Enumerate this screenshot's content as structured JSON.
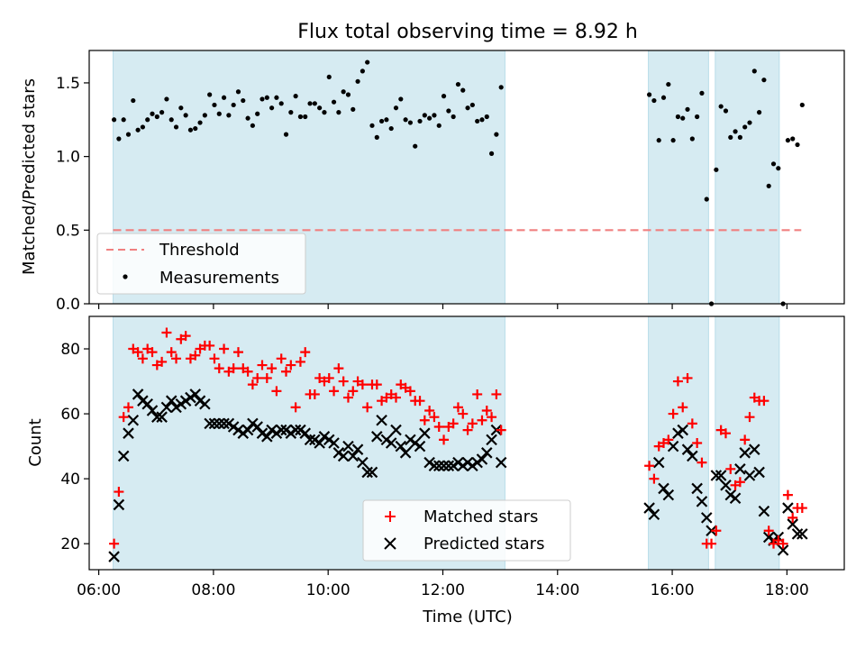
{
  "chart_data": [
    {
      "type": "scatter",
      "title": "Flux total observing time = 8.92 h",
      "ylabel": "Matched/Predicted stars",
      "xlim": [
        "05:50",
        "19:00"
      ],
      "ylim": [
        0,
        1.72
      ],
      "yticks": [
        "0.0",
        "0.5",
        "1.0",
        "1.5"
      ],
      "threshold": 0.5,
      "shaded_intervals": [
        [
          "06:15",
          "13:05"
        ],
        [
          "15:35",
          "16:38"
        ],
        [
          "16:45",
          "17:52"
        ]
      ],
      "legend": {
        "position": "lower-left",
        "entries": [
          "Threshold",
          "Measurements"
        ]
      },
      "series": [
        {
          "name": "Threshold",
          "kind": "dashed-line",
          "color": "#f08080",
          "x": [
            "06:15",
            "18:15"
          ],
          "y": [
            0.5,
            0.5
          ]
        },
        {
          "name": "Measurements",
          "kind": "points",
          "color": "#000000",
          "x": [
            "06:16",
            "06:21",
            "06:26",
            "06:31",
            "06:36",
            "06:41",
            "06:46",
            "06:51",
            "06:56",
            "07:01",
            "07:06",
            "07:11",
            "07:16",
            "07:21",
            "07:26",
            "07:31",
            "07:36",
            "07:41",
            "07:46",
            "07:51",
            "07:56",
            "08:01",
            "08:06",
            "08:11",
            "08:16",
            "08:21",
            "08:26",
            "08:31",
            "08:36",
            "08:41",
            "08:46",
            "08:51",
            "08:56",
            "09:01",
            "09:06",
            "09:11",
            "09:16",
            "09:21",
            "09:26",
            "09:31",
            "09:36",
            "09:41",
            "09:46",
            "09:51",
            "09:56",
            "10:01",
            "10:06",
            "10:11",
            "10:16",
            "10:21",
            "10:26",
            "10:31",
            "10:36",
            "10:41",
            "10:46",
            "10:51",
            "10:56",
            "11:01",
            "11:06",
            "11:11",
            "11:16",
            "11:21",
            "11:26",
            "11:31",
            "11:36",
            "11:41",
            "11:46",
            "11:51",
            "11:56",
            "12:01",
            "12:06",
            "12:11",
            "12:16",
            "12:21",
            "12:26",
            "12:31",
            "12:36",
            "12:41",
            "12:46",
            "12:51",
            "12:56",
            "13:01",
            "15:36",
            "15:41",
            "15:46",
            "15:51",
            "15:56",
            "16:01",
            "16:06",
            "16:11",
            "16:16",
            "16:21",
            "16:26",
            "16:31",
            "16:36",
            "16:41",
            "16:46",
            "16:51",
            "16:56",
            "17:01",
            "17:06",
            "17:11",
            "17:16",
            "17:21",
            "17:26",
            "17:31",
            "17:36",
            "17:41",
            "17:46",
            "17:51",
            "17:56",
            "18:01",
            "18:06",
            "18:11",
            "18:16"
          ],
          "y": [
            1.25,
            1.12,
            1.25,
            1.15,
            1.38,
            1.18,
            1.2,
            1.25,
            1.29,
            1.27,
            1.3,
            1.39,
            1.25,
            1.2,
            1.33,
            1.28,
            1.18,
            1.19,
            1.23,
            1.28,
            1.42,
            1.35,
            1.29,
            1.4,
            1.28,
            1.35,
            1.44,
            1.38,
            1.26,
            1.21,
            1.29,
            1.39,
            1.4,
            1.33,
            1.4,
            1.36,
            1.15,
            1.3,
            1.41,
            1.27,
            1.27,
            1.36,
            1.36,
            1.33,
            1.3,
            1.54,
            1.37,
            1.3,
            1.44,
            1.42,
            1.32,
            1.51,
            1.58,
            1.64,
            1.21,
            1.13,
            1.24,
            1.25,
            1.19,
            1.33,
            1.39,
            1.25,
            1.23,
            1.07,
            1.24,
            1.28,
            1.26,
            1.28,
            1.21,
            1.41,
            1.31,
            1.27,
            1.49,
            1.45,
            1.33,
            1.35,
            1.24,
            1.25,
            1.27,
            1.02,
            1.15,
            1.47,
            1.42,
            1.38,
            1.11,
            1.4,
            1.49,
            1.11,
            1.27,
            1.26,
            1.32,
            1.12,
            1.27,
            1.43,
            0.71,
            0.0,
            0.91,
            1.34,
            1.31,
            1.13,
            1.17,
            1.13,
            1.2,
            1.23,
            1.58,
            1.3,
            1.52,
            0.8,
            0.95,
            0.92,
            0.0,
            1.11,
            1.12,
            1.08,
            1.35
          ]
        }
      ]
    },
    {
      "type": "scatter",
      "xlabel": "Time (UTC)",
      "ylabel": "Count",
      "xlim": [
        "05:50",
        "19:00"
      ],
      "ylim": [
        12,
        90
      ],
      "yticks": [
        "20",
        "40",
        "60",
        "80"
      ],
      "xticks": [
        "06:00",
        "08:00",
        "10:00",
        "12:00",
        "14:00",
        "16:00",
        "18:00"
      ],
      "shaded_intervals": [
        [
          "06:15",
          "13:05"
        ],
        [
          "15:35",
          "16:38"
        ],
        [
          "16:45",
          "17:52"
        ]
      ],
      "legend": {
        "position": "lower-center",
        "entries": [
          "Matched stars",
          "Predicted stars"
        ]
      },
      "series": [
        {
          "name": "Matched stars",
          "marker": "+",
          "color": "#ff0000",
          "x": [
            "06:16",
            "06:21",
            "06:26",
            "06:31",
            "06:36",
            "06:41",
            "06:46",
            "06:51",
            "06:56",
            "07:01",
            "07:06",
            "07:11",
            "07:16",
            "07:21",
            "07:26",
            "07:31",
            "07:36",
            "07:41",
            "07:46",
            "07:51",
            "07:56",
            "08:01",
            "08:06",
            "08:11",
            "08:16",
            "08:21",
            "08:26",
            "08:31",
            "08:36",
            "08:41",
            "08:46",
            "08:51",
            "08:56",
            "09:01",
            "09:06",
            "09:11",
            "09:16",
            "09:21",
            "09:26",
            "09:31",
            "09:36",
            "09:41",
            "09:46",
            "09:51",
            "09:56",
            "10:01",
            "10:06",
            "10:11",
            "10:16",
            "10:21",
            "10:26",
            "10:31",
            "10:36",
            "10:41",
            "10:46",
            "10:51",
            "10:56",
            "11:01",
            "11:06",
            "11:11",
            "11:16",
            "11:21",
            "11:26",
            "11:31",
            "11:36",
            "11:41",
            "11:46",
            "11:51",
            "11:56",
            "12:01",
            "12:06",
            "12:11",
            "12:16",
            "12:21",
            "12:26",
            "12:31",
            "12:36",
            "12:41",
            "12:46",
            "12:51",
            "12:56",
            "13:01",
            "15:36",
            "15:41",
            "15:46",
            "15:51",
            "15:56",
            "16:01",
            "16:06",
            "16:11",
            "16:16",
            "16:21",
            "16:26",
            "16:31",
            "16:36",
            "16:41",
            "16:46",
            "16:51",
            "16:56",
            "17:01",
            "17:06",
            "17:11",
            "17:16",
            "17:21",
            "17:26",
            "17:31",
            "17:36",
            "17:41",
            "17:46",
            "17:51",
            "17:56",
            "18:01",
            "18:06",
            "18:11",
            "18:16"
          ],
          "y": [
            20,
            36,
            59,
            62,
            80,
            79,
            77,
            80,
            79,
            75,
            76,
            85,
            79,
            77,
            83,
            84,
            77,
            78,
            80,
            81,
            81,
            77,
            74,
            80,
            73,
            74,
            79,
            74,
            73,
            69,
            71,
            75,
            71,
            74,
            67,
            77,
            73,
            75,
            62,
            76,
            79,
            66,
            66,
            71,
            70,
            71,
            67,
            74,
            70,
            65,
            67,
            70,
            69,
            62,
            69,
            69,
            64,
            65,
            66,
            65,
            69,
            68,
            67,
            64,
            64,
            58,
            61,
            59,
            56,
            52,
            56,
            57,
            62,
            60,
            55,
            57,
            66,
            58,
            61,
            59,
            66,
            55,
            44,
            40,
            50,
            51,
            52,
            60,
            70,
            62,
            71,
            57,
            51,
            45,
            20,
            20,
            24,
            55,
            54,
            43,
            38,
            39,
            52,
            59,
            65,
            64,
            64,
            24,
            20,
            21,
            20,
            35,
            28,
            31,
            31
          ]
        },
        {
          "name": "Predicted stars",
          "marker": "x",
          "color": "#000000",
          "x": [
            "06:16",
            "06:21",
            "06:26",
            "06:31",
            "06:36",
            "06:41",
            "06:46",
            "06:51",
            "06:56",
            "07:01",
            "07:06",
            "07:11",
            "07:16",
            "07:21",
            "07:26",
            "07:31",
            "07:36",
            "07:41",
            "07:46",
            "07:51",
            "07:56",
            "08:01",
            "08:06",
            "08:11",
            "08:16",
            "08:21",
            "08:26",
            "08:31",
            "08:36",
            "08:41",
            "08:46",
            "08:51",
            "08:56",
            "09:01",
            "09:06",
            "09:11",
            "09:16",
            "09:21",
            "09:26",
            "09:31",
            "09:36",
            "09:41",
            "09:46",
            "09:51",
            "09:56",
            "10:01",
            "10:06",
            "10:11",
            "10:16",
            "10:21",
            "10:26",
            "10:31",
            "10:36",
            "10:41",
            "10:46",
            "10:51",
            "10:56",
            "11:01",
            "11:06",
            "11:11",
            "11:16",
            "11:21",
            "11:26",
            "11:31",
            "11:36",
            "11:41",
            "11:46",
            "11:51",
            "11:56",
            "12:01",
            "12:06",
            "12:11",
            "12:16",
            "12:21",
            "12:26",
            "12:31",
            "12:36",
            "12:41",
            "12:46",
            "12:51",
            "12:56",
            "13:01",
            "15:36",
            "15:41",
            "15:46",
            "15:51",
            "15:56",
            "16:01",
            "16:06",
            "16:11",
            "16:16",
            "16:21",
            "16:26",
            "16:31",
            "16:36",
            "16:41",
            "16:46",
            "16:51",
            "16:56",
            "17:01",
            "17:06",
            "17:11",
            "17:16",
            "17:21",
            "17:26",
            "17:31",
            "17:36",
            "17:41",
            "17:46",
            "17:51",
            "17:56",
            "18:01",
            "18:06",
            "18:11",
            "18:16"
          ],
          "y": [
            16,
            32,
            47,
            54,
            58,
            66,
            64,
            63,
            61,
            59,
            59,
            62,
            64,
            62,
            63,
            64,
            65,
            66,
            64,
            63,
            57,
            57,
            57,
            57,
            57,
            56,
            55,
            54,
            55,
            57,
            56,
            54,
            53,
            55,
            54,
            55,
            55,
            54,
            55,
            55,
            54,
            52,
            52,
            51,
            53,
            52,
            51,
            48,
            47,
            50,
            47,
            49,
            45,
            42,
            42,
            53,
            58,
            52,
            51,
            55,
            50,
            48,
            52,
            51,
            50,
            54,
            45,
            44,
            44,
            44,
            44,
            44,
            45,
            44,
            45,
            44,
            45,
            46,
            48,
            52,
            55,
            45,
            31,
            29,
            45,
            37,
            35,
            50,
            54,
            55,
            49,
            47,
            37,
            33,
            28,
            24,
            41,
            41,
            38,
            35,
            34,
            43,
            48,
            41,
            49,
            42,
            30,
            22,
            21,
            22,
            18,
            31,
            26,
            23,
            23
          ]
        }
      ]
    }
  ]
}
